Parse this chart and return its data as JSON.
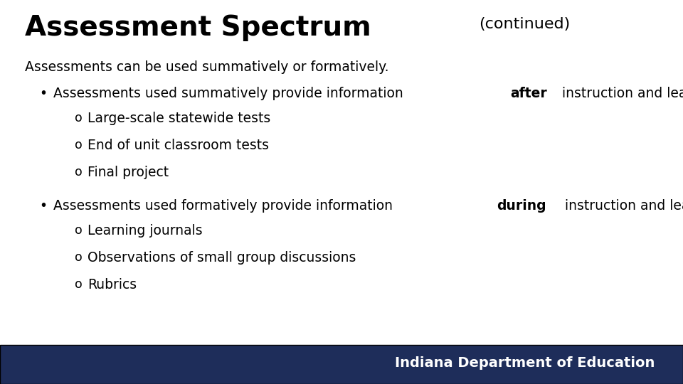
{
  "title_main": "Assessment Spectrum",
  "title_continued": "(continued)",
  "bg_color": "#ffffff",
  "footer_bg_color": "#1e2d5a",
  "footer_text": "Indiana Department of Education",
  "footer_text_color": "#ffffff",
  "title_color": "#000000",
  "body_color": "#000000",
  "intro_line": "Assessments can be used summatively or formatively.",
  "bullet1_pre": "Assessments used summatively provide information ",
  "bullet1_bold": "after",
  "bullet1_post": " instruction and learning",
  "sub_bullets1": [
    "Large-scale statewide tests",
    "End of unit classroom tests",
    "Final project"
  ],
  "bullet2_pre": "Assessments used formatively provide information ",
  "bullet2_bold": "during",
  "bullet2_post": " instruction and learning.",
  "sub_bullets2": [
    "Learning journals",
    "Observations of small group discussions",
    "Rubrics"
  ],
  "title_main_fontsize": 28,
  "title_cont_fontsize": 16,
  "body_fontsize": 13.5,
  "footer_fontsize": 14
}
